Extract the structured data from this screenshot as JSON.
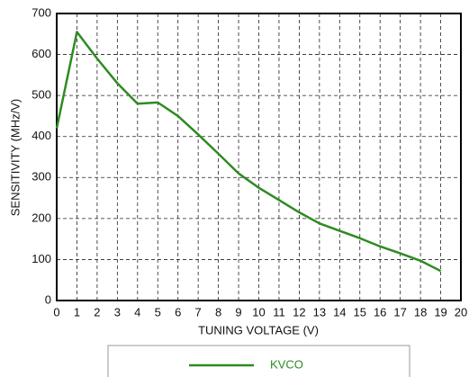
{
  "chart_data": {
    "type": "line",
    "xlabel": "TUNING VOLTAGE (V)",
    "ylabel": "SENSITIVITY (MHz/V)",
    "x": [
      0,
      1,
      2,
      3,
      4,
      5,
      6,
      7,
      8,
      9,
      10,
      11,
      12,
      13,
      14,
      15,
      16,
      17,
      18,
      19
    ],
    "series": [
      {
        "name": "KVCO",
        "color": "#2e8b22",
        "values": [
          420,
          655,
          590,
          530,
          480,
          483,
          450,
          405,
          358,
          310,
          275,
          245,
          215,
          188,
          170,
          152,
          132,
          115,
          97,
          72
        ]
      }
    ],
    "xlim": [
      0,
      20
    ],
    "xticks": [
      0,
      1,
      2,
      3,
      4,
      5,
      6,
      7,
      8,
      9,
      10,
      11,
      12,
      13,
      14,
      15,
      16,
      17,
      18,
      19,
      20
    ],
    "ylim": [
      0,
      700
    ],
    "yticks": [
      0,
      100,
      200,
      300,
      400,
      500,
      600,
      700
    ],
    "grid": true,
    "legend": "bottom"
  }
}
